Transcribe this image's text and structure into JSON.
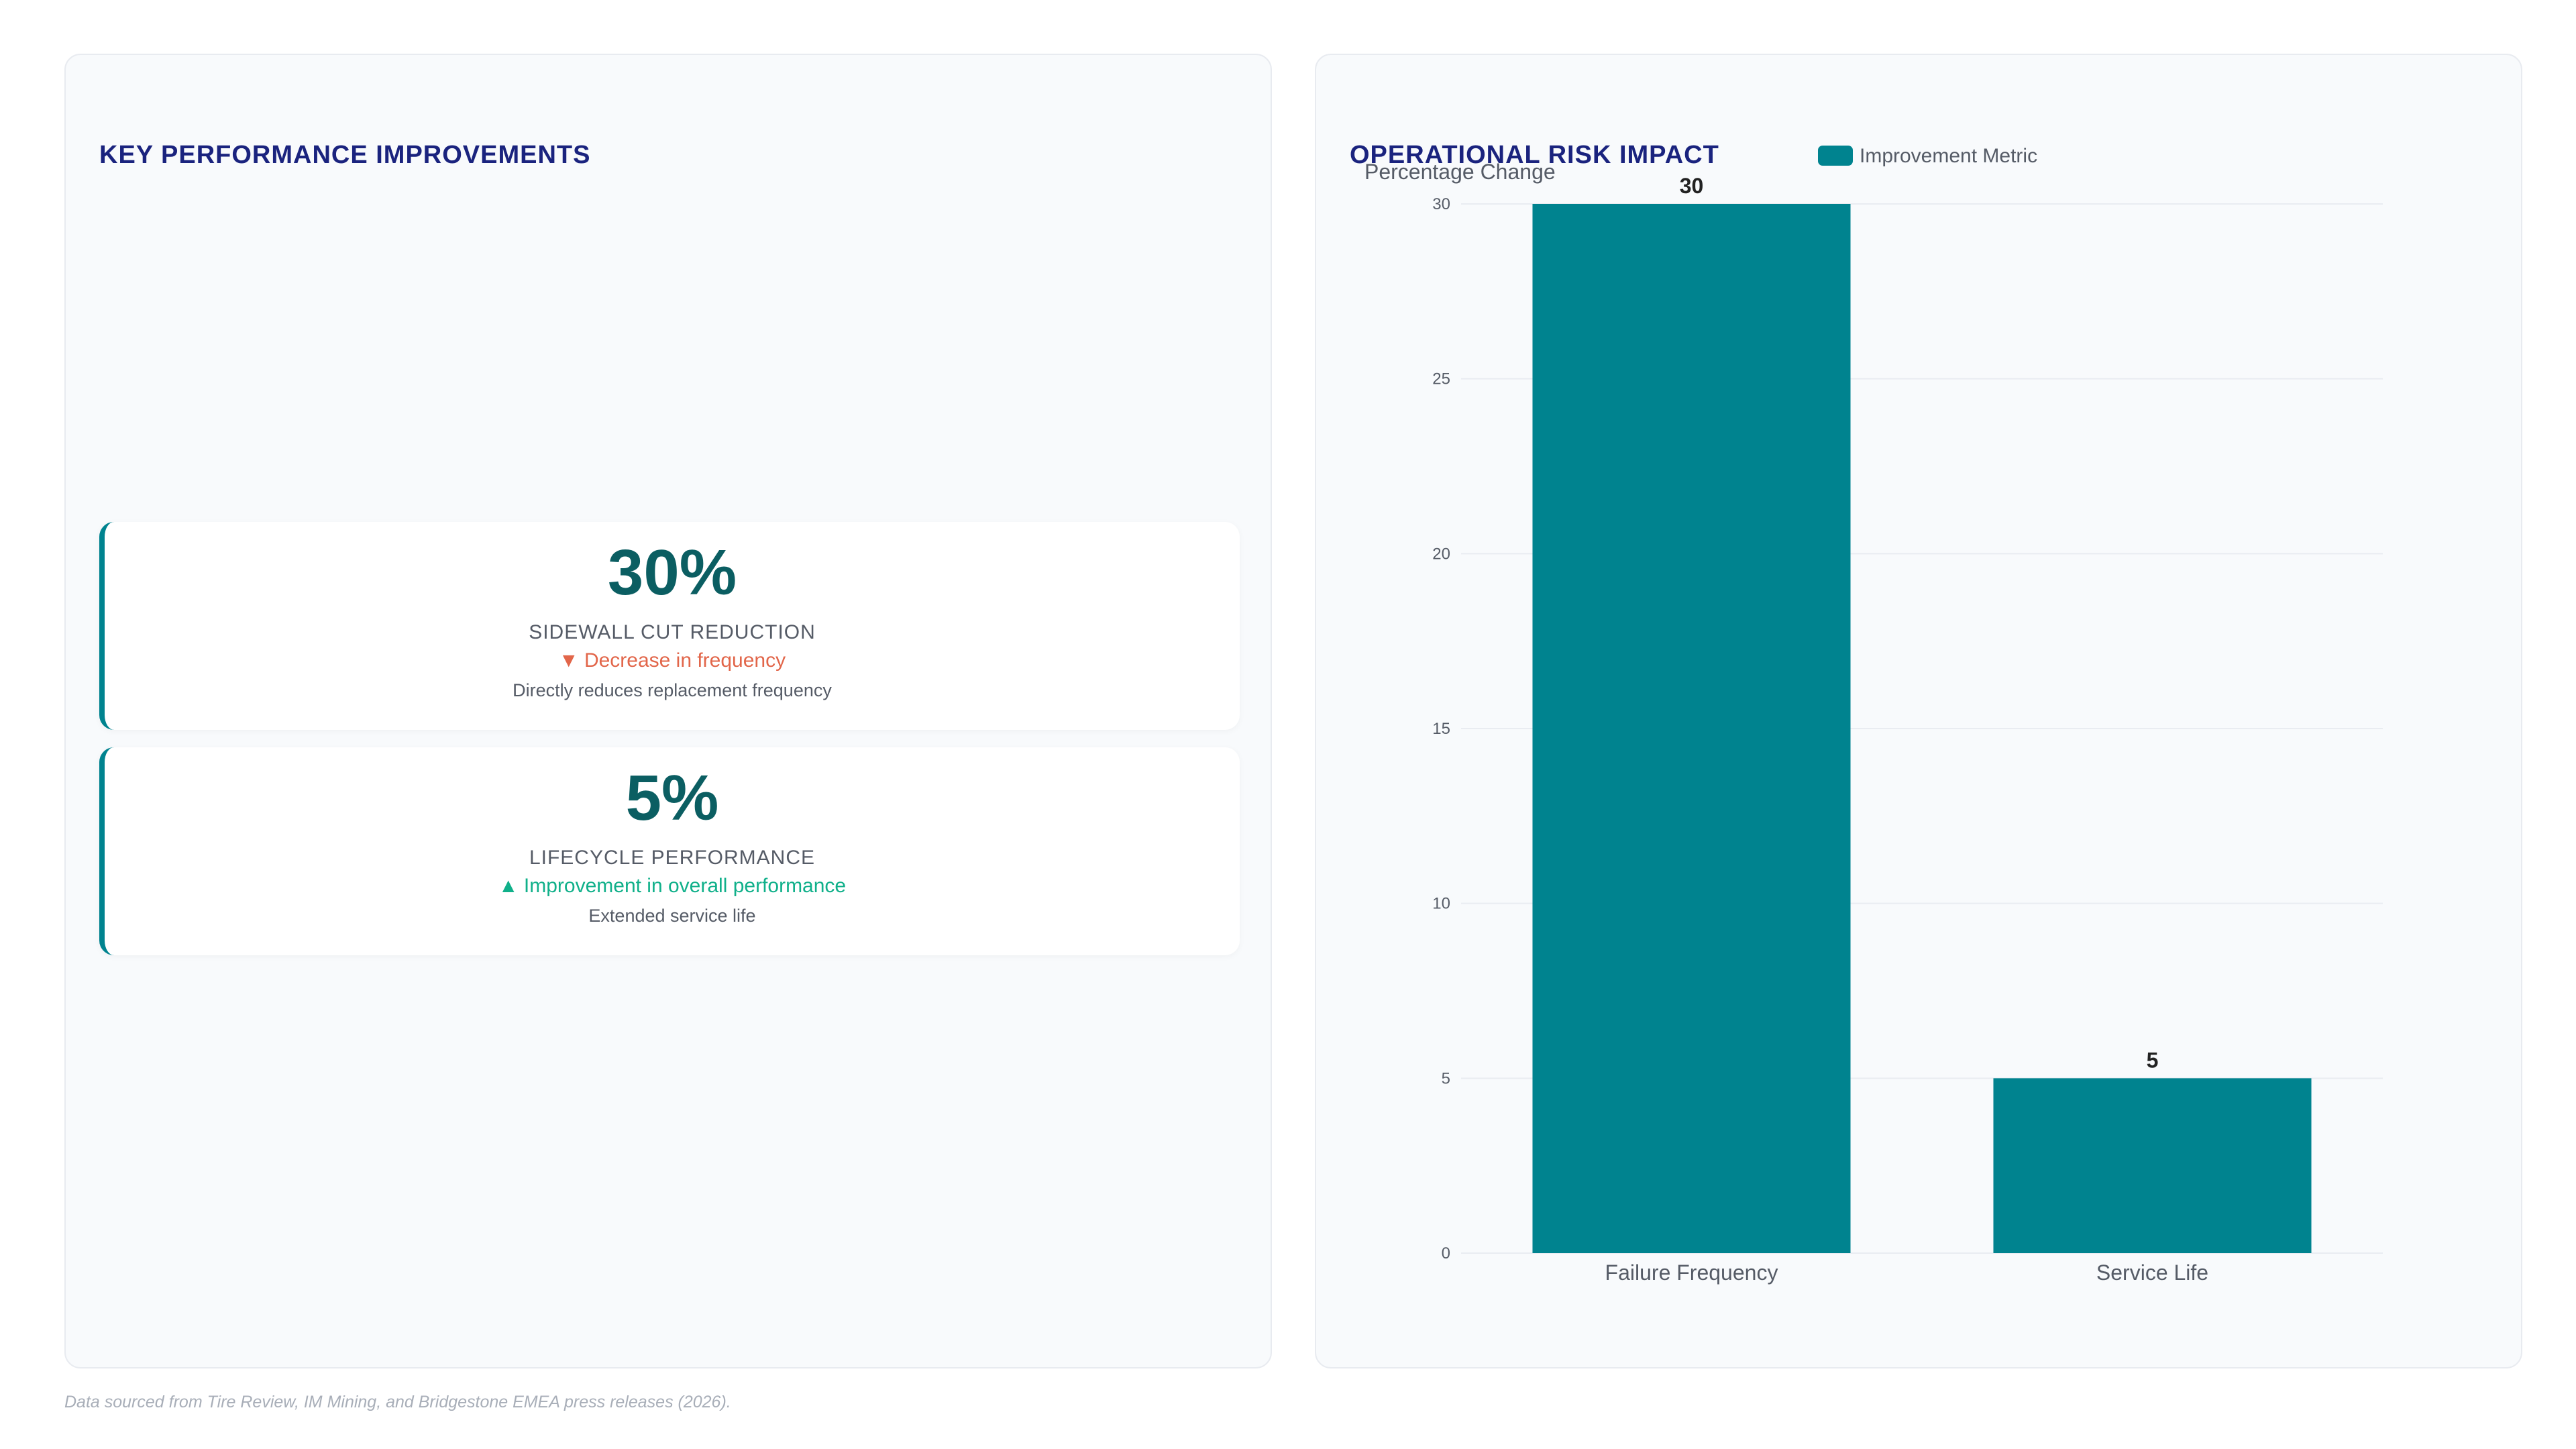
{
  "left_panel": {
    "title": "KEY PERFORMANCE IMPROVEMENTS",
    "kpis": [
      {
        "value": "30%",
        "label": "SIDEWALL CUT REDUCTION",
        "trend_icon": "▼",
        "trend_text": "Decrease in frequency",
        "trend_color": "#e2664a",
        "description": "Directly reduces replacement frequency"
      },
      {
        "value": "5%",
        "label": "LIFECYCLE PERFORMANCE",
        "trend_icon": "▲",
        "trend_text": "Improvement in overall performance",
        "trend_color": "#10b08a",
        "description": "Extended service life"
      }
    ]
  },
  "right_panel": {
    "title": "OPERATIONAL RISK IMPACT"
  },
  "chart_data": {
    "type": "bar",
    "categories": [
      "Failure Frequency",
      "Service Life"
    ],
    "series": [
      {
        "name": "Improvement Metric",
        "values": [
          30,
          5
        ],
        "color": "#00838f"
      }
    ],
    "ylabel": "Percentage Change",
    "ylim": [
      0,
      30
    ],
    "yticks": [
      0,
      5,
      10,
      15,
      20,
      25,
      30
    ],
    "grid": true,
    "legend_position": "top-center",
    "data_labels": true
  },
  "footer": {
    "text": "Data sourced from Tire Review, IM Mining, and Bridgestone EMEA press releases (2026)."
  },
  "colors": {
    "title": "#1a237e",
    "accent": "#00838f",
    "kpi_value": "#0b5e62"
  }
}
